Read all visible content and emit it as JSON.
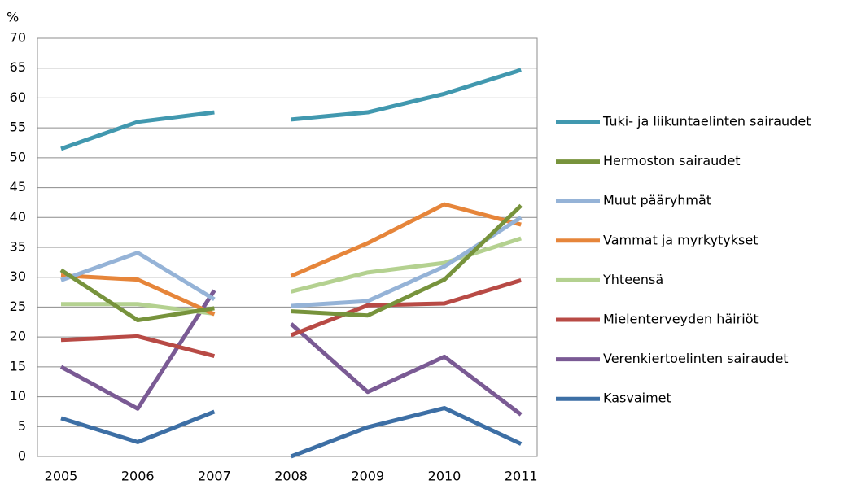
{
  "chart_data": {
    "type": "line",
    "y_label": "%",
    "x": [
      "2005",
      "2006",
      "2007",
      "2008",
      "2009",
      "2010",
      "2011"
    ],
    "break_after": 2,
    "ylim": [
      0,
      70
    ],
    "yticks": [
      0,
      5,
      10,
      15,
      20,
      25,
      30,
      35,
      40,
      45,
      50,
      55,
      60,
      65,
      70
    ],
    "grid": true,
    "legend": "right",
    "series": [
      {
        "name": "Tuki- ja liikuntaelinten sairaudet",
        "color": "#4198af",
        "values": [
          51.5,
          56,
          57.6,
          56.4,
          57.6,
          60.7,
          64.7
        ]
      },
      {
        "name": "Hermoston sairaudet",
        "color": "#77933c",
        "values": [
          31.2,
          22.8,
          24.8,
          24.3,
          23.6,
          29.6,
          42
        ]
      },
      {
        "name": "Muut pääryhmät",
        "color": "#95b3d7",
        "values": [
          29.5,
          34.1,
          26.3,
          25.2,
          26,
          31.8,
          40
        ]
      },
      {
        "name": "Vammat ja myrkytykset",
        "color": "#e6853a",
        "values": [
          30.3,
          29.6,
          23.8,
          30.2,
          35.7,
          42.2,
          38.8
        ]
      },
      {
        "name": "Yhteensä",
        "color": "#b4d190",
        "values": [
          25.5,
          25.5,
          23.9,
          27.6,
          30.8,
          32.4,
          36.5
        ]
      },
      {
        "name": "Mielenterveyden häiriöt",
        "color": "#b84a45",
        "values": [
          19.5,
          20.1,
          16.8,
          20.3,
          25.3,
          25.6,
          29.5
        ]
      },
      {
        "name": "Verenkiertoelinten sairaudet",
        "color": "#7a5a94",
        "values": [
          15,
          8,
          27.8,
          22.2,
          10.8,
          16.7,
          7
        ]
      },
      {
        "name": "Kasvaimet",
        "color": "#3d6fa5",
        "values": [
          6.4,
          2.4,
          7.5,
          0,
          4.9,
          8.1,
          2.1
        ]
      }
    ]
  }
}
